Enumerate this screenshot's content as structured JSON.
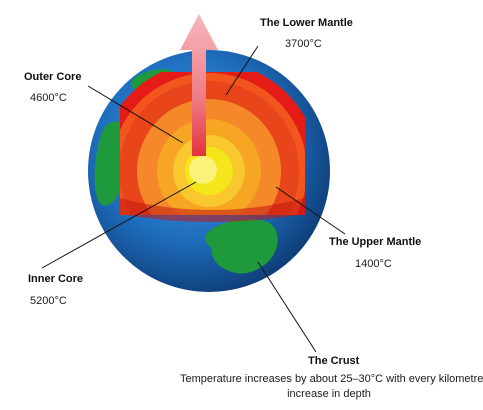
{
  "labels": {
    "lower_mantle": {
      "name": "The Lower Mantle",
      "temp": "3700°C"
    },
    "outer_core": {
      "name": "Outer Core",
      "temp": "4600°C"
    },
    "upper_mantle": {
      "name": "The Upper Mantle",
      "temp": "1400°C"
    },
    "inner_core": {
      "name": "Inner Core",
      "temp": "5200°C"
    },
    "crust": {
      "name": "The Crust"
    }
  },
  "caption": {
    "line1": "Temperature increases by about 25–30°C with every kilometre",
    "line2": "increase in depth"
  },
  "colors": {
    "ocean": "#1f6fc0",
    "land": "#1e9a3c",
    "crust_red": "#e41b17",
    "upper_mantle": "#f2551e",
    "lower_mantle": "#f5892a",
    "outer_core": "#f6a623",
    "inner_core": "#f5e61c",
    "arrow": "#f07b84"
  }
}
